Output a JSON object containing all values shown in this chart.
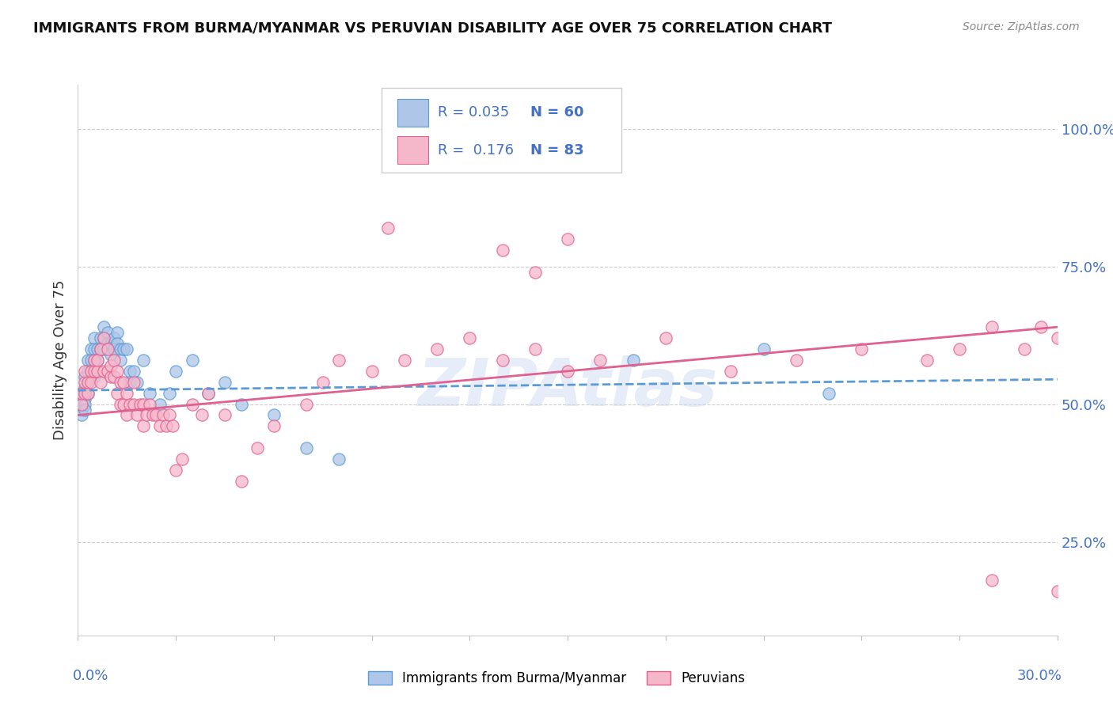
{
  "title": "IMMIGRANTS FROM BURMA/MYANMAR VS PERUVIAN DISABILITY AGE OVER 75 CORRELATION CHART",
  "source": "Source: ZipAtlas.com",
  "ylabel": "Disability Age Over 75",
  "ytick_labels": [
    "100.0%",
    "75.0%",
    "50.0%",
    "25.0%"
  ],
  "ytick_values": [
    1.0,
    0.75,
    0.5,
    0.25
  ],
  "xmin": 0.0,
  "xmax": 0.3,
  "ymin": 0.08,
  "ymax": 1.08,
  "watermark": "ZIPAtlas",
  "series1": {
    "label": "Immigrants from Burma/Myanmar",
    "R": 0.035,
    "N": 60,
    "color": "#aec6e8",
    "edge_color": "#5b9bd5",
    "line_color": "#5b9bd5",
    "x": [
      0.001,
      0.001,
      0.001,
      0.001,
      0.001,
      0.002,
      0.002,
      0.002,
      0.002,
      0.002,
      0.002,
      0.003,
      0.003,
      0.003,
      0.003,
      0.004,
      0.004,
      0.004,
      0.005,
      0.005,
      0.005,
      0.005,
      0.006,
      0.006,
      0.007,
      0.007,
      0.008,
      0.008,
      0.008,
      0.009,
      0.009,
      0.01,
      0.01,
      0.011,
      0.011,
      0.012,
      0.012,
      0.013,
      0.013,
      0.014,
      0.015,
      0.016,
      0.016,
      0.017,
      0.018,
      0.02,
      0.022,
      0.025,
      0.028,
      0.03,
      0.035,
      0.04,
      0.045,
      0.05,
      0.06,
      0.07,
      0.08,
      0.17,
      0.21,
      0.23
    ],
    "y": [
      0.52,
      0.51,
      0.5,
      0.49,
      0.48,
      0.55,
      0.53,
      0.52,
      0.51,
      0.5,
      0.49,
      0.58,
      0.56,
      0.54,
      0.52,
      0.6,
      0.58,
      0.56,
      0.62,
      0.6,
      0.58,
      0.55,
      0.6,
      0.58,
      0.62,
      0.6,
      0.64,
      0.62,
      0.6,
      0.63,
      0.61,
      0.61,
      0.59,
      0.62,
      0.6,
      0.63,
      0.61,
      0.6,
      0.58,
      0.6,
      0.6,
      0.56,
      0.54,
      0.56,
      0.54,
      0.58,
      0.52,
      0.5,
      0.52,
      0.56,
      0.58,
      0.52,
      0.54,
      0.5,
      0.48,
      0.42,
      0.4,
      0.58,
      0.6,
      0.52
    ]
  },
  "series2": {
    "label": "Peruvians",
    "R": 0.176,
    "N": 83,
    "color": "#f5b8cb",
    "edge_color": "#e06090",
    "line_color": "#e06090",
    "x": [
      0.001,
      0.001,
      0.002,
      0.002,
      0.002,
      0.003,
      0.003,
      0.004,
      0.004,
      0.005,
      0.005,
      0.006,
      0.006,
      0.007,
      0.007,
      0.008,
      0.008,
      0.009,
      0.009,
      0.01,
      0.01,
      0.011,
      0.011,
      0.012,
      0.012,
      0.013,
      0.013,
      0.014,
      0.014,
      0.015,
      0.015,
      0.016,
      0.017,
      0.017,
      0.018,
      0.019,
      0.02,
      0.02,
      0.021,
      0.022,
      0.023,
      0.024,
      0.025,
      0.026,
      0.027,
      0.028,
      0.029,
      0.03,
      0.032,
      0.035,
      0.038,
      0.04,
      0.045,
      0.05,
      0.055,
      0.06,
      0.07,
      0.075,
      0.08,
      0.09,
      0.1,
      0.11,
      0.12,
      0.13,
      0.14,
      0.15,
      0.16,
      0.18,
      0.2,
      0.22,
      0.24,
      0.26,
      0.27,
      0.28,
      0.29,
      0.295,
      0.3,
      0.095,
      0.13,
      0.14,
      0.15,
      0.28,
      0.3
    ],
    "y": [
      0.5,
      0.52,
      0.52,
      0.54,
      0.56,
      0.52,
      0.54,
      0.54,
      0.56,
      0.56,
      0.58,
      0.56,
      0.58,
      0.54,
      0.6,
      0.56,
      0.62,
      0.56,
      0.6,
      0.55,
      0.57,
      0.55,
      0.58,
      0.52,
      0.56,
      0.5,
      0.54,
      0.5,
      0.54,
      0.48,
      0.52,
      0.5,
      0.5,
      0.54,
      0.48,
      0.5,
      0.46,
      0.5,
      0.48,
      0.5,
      0.48,
      0.48,
      0.46,
      0.48,
      0.46,
      0.48,
      0.46,
      0.38,
      0.4,
      0.5,
      0.48,
      0.52,
      0.48,
      0.36,
      0.42,
      0.46,
      0.5,
      0.54,
      0.58,
      0.56,
      0.58,
      0.6,
      0.62,
      0.58,
      0.6,
      0.56,
      0.58,
      0.62,
      0.56,
      0.58,
      0.6,
      0.58,
      0.6,
      0.64,
      0.6,
      0.64,
      0.62,
      0.82,
      0.78,
      0.74,
      0.8,
      0.18,
      0.16
    ]
  },
  "trend1_x": [
    0.0,
    0.3
  ],
  "trend1_y": [
    0.525,
    0.545
  ],
  "trend2_x": [
    0.0,
    0.3
  ],
  "trend2_y": [
    0.48,
    0.64
  ]
}
